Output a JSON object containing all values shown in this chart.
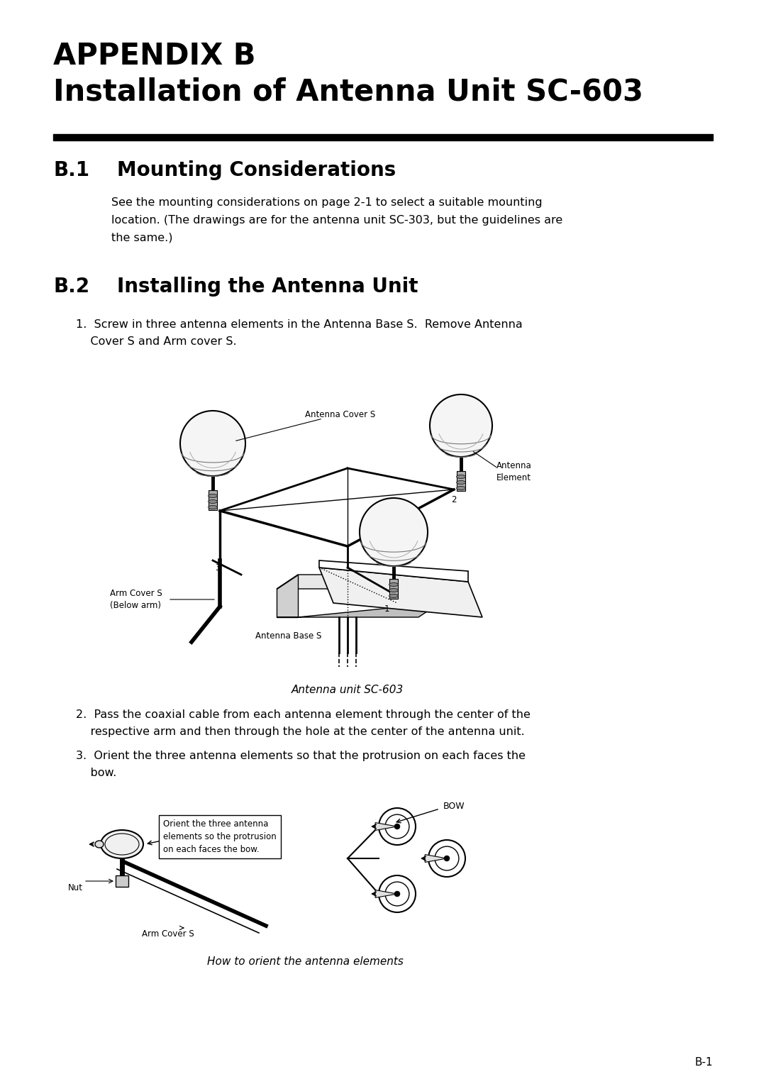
{
  "title_line1": "APPENDIX B",
  "title_line2": "Installation of Antenna Unit SC-603",
  "section1_label": "B.1",
  "section1_title": "Mounting Considerations",
  "section1_body_lines": [
    "See the mounting considerations on page 2-1 to select a suitable mounting",
    "location. (The drawings are for the antenna unit SC-303, but the guidelines are",
    "the same.)"
  ],
  "section2_label": "B.2",
  "section2_title": "Installing the Antenna Unit",
  "item1_lines": [
    "1.  Screw in three antenna elements in the Antenna Base S.  Remove Antenna",
    "    Cover S and Arm cover S."
  ],
  "diagram1_caption": "Antenna unit SC-603",
  "item2_lines": [
    "2.  Pass the coaxial cable from each antenna element through the center of the",
    "    respective arm and then through the hole at the center of the antenna unit."
  ],
  "item3_lines": [
    "3.  Orient the three antenna elements so that the protrusion on each faces the",
    "    bow."
  ],
  "diagram2_caption": "How to orient the antenna elements",
  "label_antenna_cover_s": "Antenna Cover S",
  "label_antenna_element": "Antenna\nElement",
  "label_arm_cover_s": "Arm Cover S\n(Below arm)",
  "label_antenna_base_s": "Antenna Base S",
  "label_bow": "BOW",
  "label_nut": "Nut",
  "label_arm_cover_s2": "Arm Cover S",
  "label_callout": "Orient the three antenna\nelements so the protrusion\non each faces the bow.",
  "page_number": "B-1",
  "bg_color": "#ffffff",
  "text_color": "#000000"
}
